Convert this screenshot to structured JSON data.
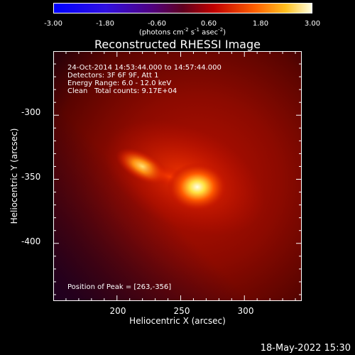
{
  "colorbar": {
    "ticks": [
      "-3.00",
      "-1.80",
      "-0.60",
      "0.60",
      "1.80",
      "3.00"
    ],
    "units_prefix": "(photons cm",
    "units_exp1": "-2",
    "units_mid": " s",
    "units_exp2": "-1",
    "units_mid2": " asec",
    "units_exp3": "-2",
    "units_suffix": ")",
    "range": [
      -3.0,
      3.0
    ]
  },
  "chart_data": {
    "type": "heatmap",
    "title": "Reconstructed RHESSI Image",
    "xlabel": "Heliocentric X (arcsec)",
    "ylabel": "Heliocentric Y (arcsec)",
    "xlim": [
      150,
      345
    ],
    "ylim": [
      -445,
      -250
    ],
    "xticks": [
      200,
      250,
      300
    ],
    "yticks": [
      -300,
      -350,
      -400
    ],
    "sources": [
      {
        "x": 263,
        "y": -356,
        "relative_intensity": 1.0
      },
      {
        "x": 220,
        "y": -340,
        "relative_intensity": 0.72
      }
    ],
    "annotations": {
      "time_range": "24-Oct-2014 14:53:44.000 to 14:57:44.000",
      "detectors": "Detectors: 3F 6F 9F, Att 1",
      "energy": "Energy Range: 6.0 - 12.0 keV",
      "method": "Clean",
      "counts": "Total counts: 9.17E+04",
      "peak": "Position of Peak = [263,-356]"
    }
  },
  "footer": {
    "date": "18-May-2022 15:30"
  }
}
